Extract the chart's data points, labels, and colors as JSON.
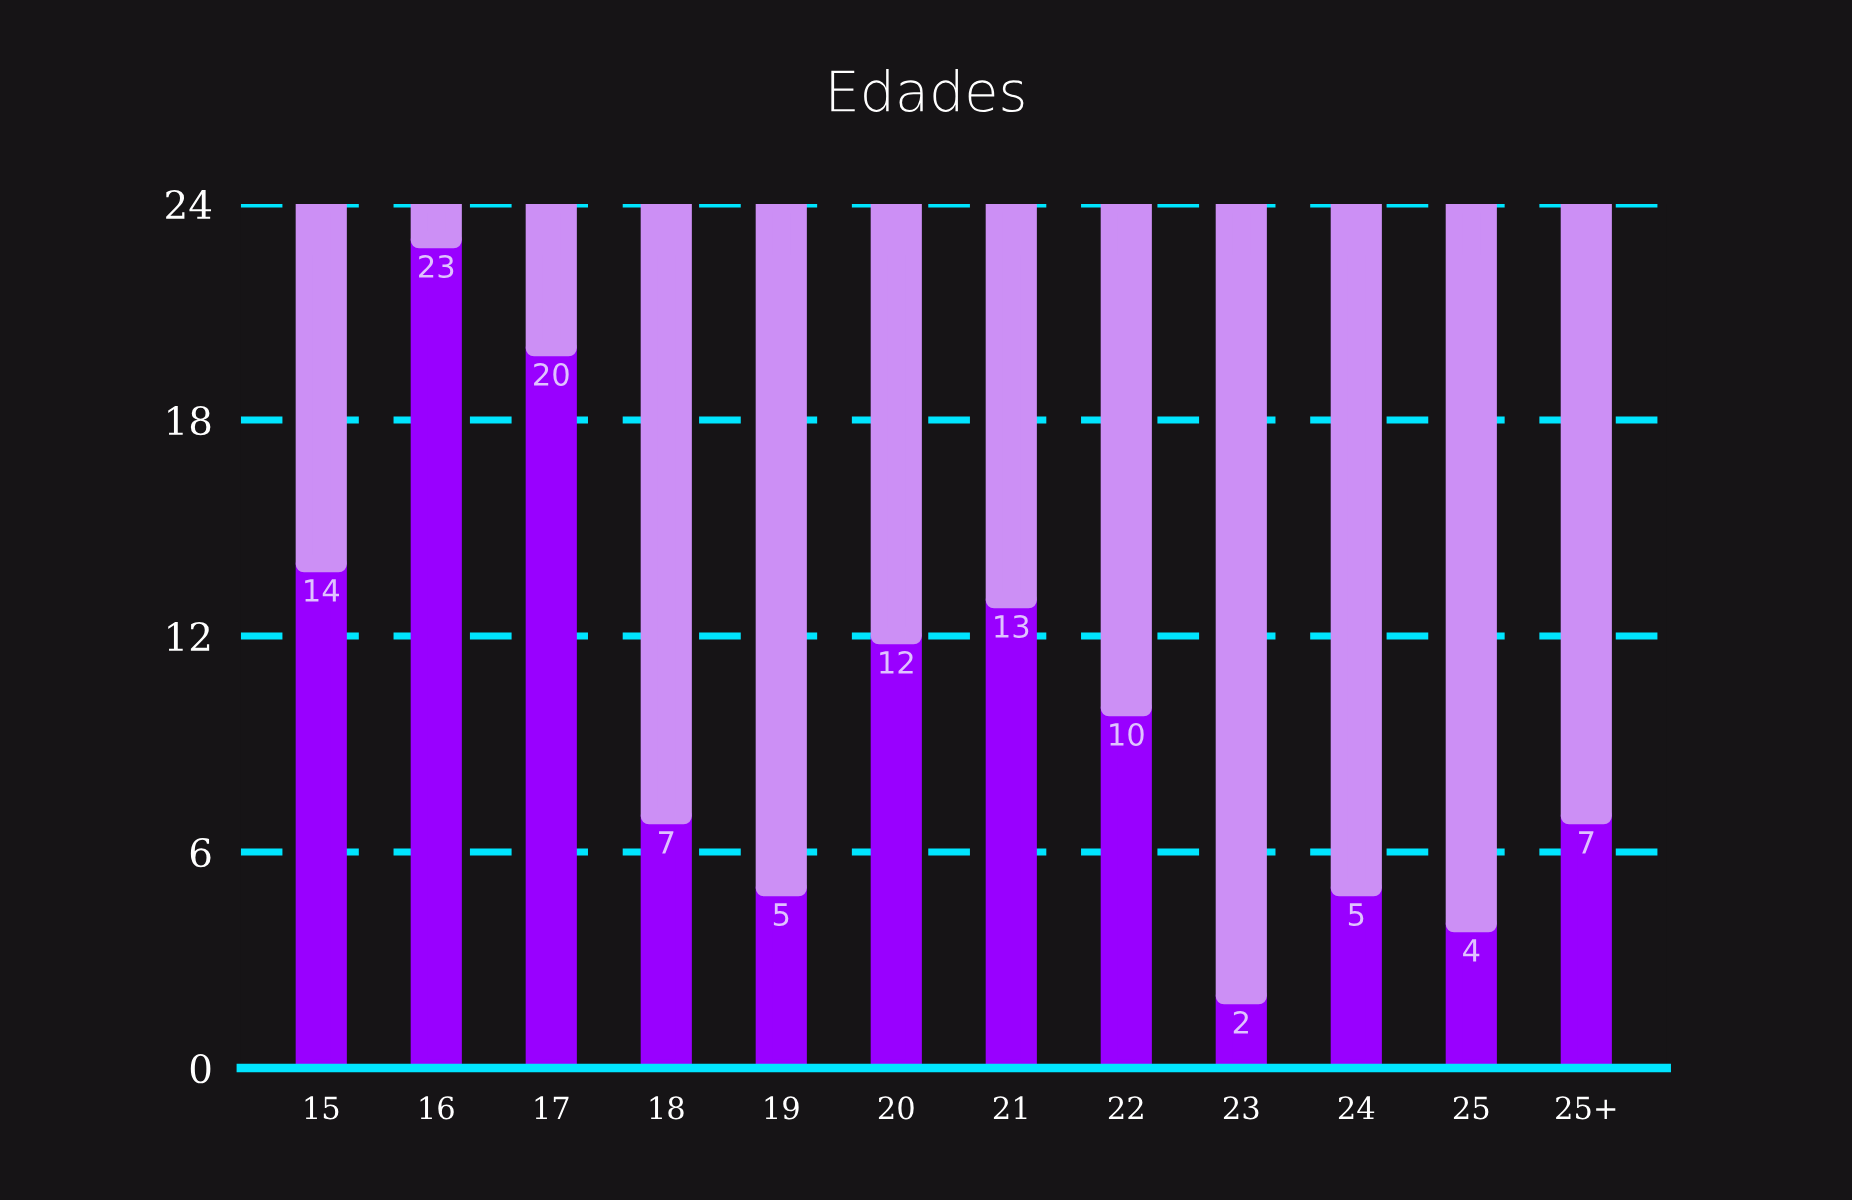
{
  "chart_data": {
    "type": "bar",
    "title": "Edades",
    "categories": [
      "15",
      "16",
      "17",
      "18",
      "19",
      "20",
      "21",
      "22",
      "23",
      "24",
      "25",
      "25+"
    ],
    "stacked": true,
    "ylim": [
      0,
      24
    ],
    "yticks": [
      0,
      6,
      12,
      18,
      24
    ],
    "grid": "y",
    "series": [
      {
        "color": "#9900ff",
        "values": [
          14,
          23,
          20,
          7,
          5,
          12,
          13,
          10,
          2,
          5,
          4,
          7
        ],
        "value_labels": [
          "14",
          "23",
          "20",
          "7",
          "5",
          "12",
          "13",
          "10",
          "2",
          "5",
          "4",
          "7"
        ]
      },
      {
        "color": "#cc8ff5",
        "values": [
          10,
          1,
          4,
          17,
          19,
          12,
          11,
          14,
          22,
          19,
          20,
          17
        ]
      }
    ]
  }
}
